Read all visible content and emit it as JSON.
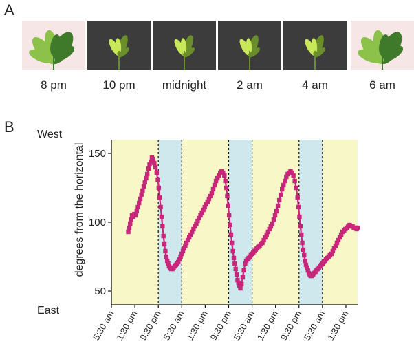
{
  "panel_a": {
    "label": "A",
    "photos": [
      {
        "time": "8 pm",
        "tone": "day"
      },
      {
        "time": "10 pm",
        "tone": "night"
      },
      {
        "time": "midnight",
        "tone": "night"
      },
      {
        "time": "2 am",
        "tone": "night"
      },
      {
        "time": "4 am",
        "tone": "night"
      },
      {
        "time": "6 am",
        "tone": "day"
      }
    ]
  },
  "panel_b": {
    "label": "B",
    "direction_top": "West",
    "direction_bottom": "East"
  },
  "colors": {
    "day_band": "#f8f7c8",
    "night_band": "#cfe8ee",
    "series": "#c8267a",
    "leaf_light": "#8dc24a",
    "leaf_dark": "#3f7a2a",
    "leaf_night": "#c8e85a"
  },
  "chart_data": {
    "type": "line",
    "ylabel": "degrees from the horizontal",
    "ylim": [
      40,
      160
    ],
    "yticks": [
      50,
      100,
      150
    ],
    "xticks": [
      "5:30 am",
      "1:30 pm",
      "9:30 pm",
      "5:30 am",
      "1:30 pm",
      "9:30 pm",
      "5:30 am",
      "1:30 pm",
      "9:30 pm",
      "5:30 am",
      "1:30 pm"
    ],
    "bands": [
      {
        "from": 0,
        "to": 2,
        "period": "day"
      },
      {
        "from": 2,
        "to": 3,
        "period": "night"
      },
      {
        "from": 3,
        "to": 5,
        "period": "day"
      },
      {
        "from": 5,
        "to": 6,
        "period": "night"
      },
      {
        "from": 6,
        "to": 8,
        "period": "day"
      },
      {
        "from": 8,
        "to": 9,
        "period": "night"
      },
      {
        "from": 9,
        "to": 10.5,
        "period": "day"
      }
    ],
    "x_unit_hours": 8,
    "series": [
      {
        "x": [
          0.72,
          0.76,
          0.8,
          0.84,
          0.88,
          0.93,
          0.98,
          1.03,
          1.08,
          1.13,
          1.18,
          1.23,
          1.28,
          1.33,
          1.38,
          1.43,
          1.48,
          1.53,
          1.58,
          1.63,
          1.68,
          1.73,
          1.78,
          1.83,
          1.88,
          1.93,
          1.98,
          2.02,
          2.06,
          2.1,
          2.14,
          2.18,
          2.22,
          2.26,
          2.3,
          2.34,
          2.38,
          2.42,
          2.46,
          2.5,
          2.55,
          2.6,
          2.65,
          2.7,
          2.75,
          2.8,
          2.85,
          2.9,
          2.95,
          3.0,
          3.05,
          3.1,
          3.15,
          3.2,
          3.26,
          3.32,
          3.38,
          3.44,
          3.5,
          3.56,
          3.62,
          3.68,
          3.74,
          3.8,
          3.86,
          3.92,
          3.98,
          4.04,
          4.1,
          4.16,
          4.22,
          4.28,
          4.34,
          4.4,
          4.46,
          4.52,
          4.58,
          4.64,
          4.7,
          4.76,
          4.82,
          4.86,
          4.9,
          4.94,
          4.98,
          5.02,
          5.06,
          5.1,
          5.14,
          5.18,
          5.22,
          5.26,
          5.3,
          5.34,
          5.38,
          5.42,
          5.46,
          5.5,
          5.55,
          5.6,
          5.65,
          5.7,
          5.75,
          5.8,
          5.85,
          5.9,
          5.95,
          6.0,
          6.05,
          6.1,
          6.15,
          6.2,
          6.26,
          6.32,
          6.38,
          6.44,
          6.5,
          6.56,
          6.62,
          6.68,
          6.74,
          6.8,
          6.86,
          6.92,
          6.98,
          7.04,
          7.1,
          7.16,
          7.22,
          7.28,
          7.34,
          7.4,
          7.46,
          7.52,
          7.58,
          7.64,
          7.7,
          7.76,
          7.82,
          7.88,
          7.94,
          7.98,
          8.02,
          8.06,
          8.1,
          8.14,
          8.18,
          8.22,
          8.26,
          8.3,
          8.34,
          8.38,
          8.42,
          8.46,
          8.5,
          8.55,
          8.6,
          8.65,
          8.7,
          8.75,
          8.8,
          8.85,
          8.9,
          8.95,
          9.0,
          9.05,
          9.1,
          9.15,
          9.2,
          9.26,
          9.32,
          9.38,
          9.44,
          9.5,
          9.56,
          9.62,
          9.68,
          9.74,
          9.8,
          9.86,
          9.92,
          9.98,
          10.04,
          10.1,
          10.16,
          10.22,
          10.28,
          10.34,
          10.4,
          10.46,
          10.5
        ],
        "values": [
          93,
          96,
          99,
          102,
          105,
          104,
          106,
          105,
          108,
          111,
          114,
          117,
          120,
          123,
          126,
          129,
          132,
          135,
          139,
          142,
          144,
          147,
          146,
          143,
          140,
          136,
          131,
          125,
          118,
          111,
          104,
          97,
          90,
          84,
          79,
          75,
          72,
          70,
          68,
          67,
          66,
          66,
          67,
          68,
          69,
          70,
          71,
          73,
          75,
          77,
          79,
          81,
          83,
          85,
          87,
          89,
          91,
          93,
          95,
          97,
          99,
          101,
          103,
          105,
          107,
          109,
          111,
          113,
          115,
          117,
          119,
          121,
          124,
          127,
          130,
          132,
          134,
          136,
          137,
          136,
          134,
          130,
          125,
          119,
          112,
          105,
          98,
          91,
          85,
          79,
          74,
          70,
          66,
          62,
          58,
          56,
          54,
          52,
          55,
          60,
          65,
          70,
          72,
          73,
          74,
          75,
          76,
          77,
          78,
          79,
          80,
          81,
          82,
          83,
          84,
          85,
          87,
          89,
          91,
          93,
          95,
          97,
          99,
          102,
          105,
          108,
          112,
          116,
          120,
          124,
          127,
          130,
          133,
          135,
          136,
          137,
          136,
          134,
          130,
          125,
          118,
          111,
          104,
          97,
          91,
          85,
          80,
          76,
          72,
          69,
          67,
          65,
          63,
          62,
          61,
          61,
          62,
          63,
          64,
          65,
          66,
          67,
          68,
          69,
          70,
          71,
          72,
          73,
          74,
          75,
          76,
          77,
          79,
          81,
          83,
          85,
          87,
          89,
          91,
          93,
          94,
          95,
          96,
          97,
          98,
          97,
          97,
          96,
          96,
          95,
          96
        ],
        "note": ""
      }
    ]
  }
}
